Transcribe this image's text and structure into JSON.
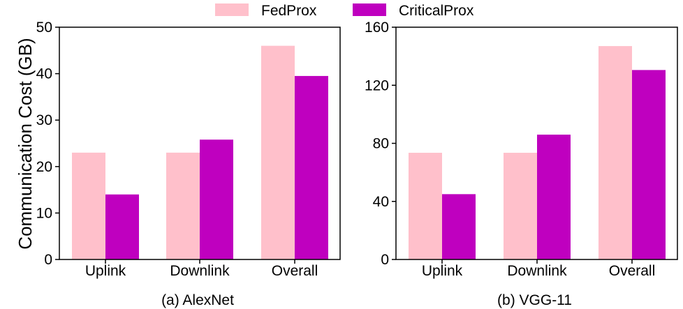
{
  "legend": {
    "items": [
      {
        "label": "FedProx",
        "color": "#ffc0cb"
      },
      {
        "label": "CriticalProx",
        "color": "#bf00bf"
      }
    ],
    "placement": "top-center"
  },
  "shared_ylabel": "Communication Cost (GB)",
  "chart_data": [
    {
      "type": "bar",
      "caption": "(a) AlexNet",
      "categories": [
        "Uplink",
        "Downlink",
        "Overall"
      ],
      "series": [
        {
          "name": "FedProx",
          "values": [
            23,
            23,
            46
          ],
          "color": "#ffc0cb"
        },
        {
          "name": "CriticalProx",
          "values": [
            14,
            25.8,
            39.5
          ],
          "color": "#bf00bf"
        }
      ],
      "ylabel": "Communication Cost (GB)",
      "ylim": [
        0,
        50
      ],
      "yticks": [
        "0",
        "10",
        "20",
        "30",
        "40",
        "50"
      ],
      "grid": false
    },
    {
      "type": "bar",
      "caption": "(b) VGG-11",
      "categories": [
        "Uplink",
        "Downlink",
        "Overall"
      ],
      "series": [
        {
          "name": "FedProx",
          "values": [
            73.5,
            73.5,
            147
          ],
          "color": "#ffc0cb"
        },
        {
          "name": "CriticalProx",
          "values": [
            45,
            86,
            130.5
          ],
          "color": "#bf00bf"
        }
      ],
      "ylabel": "",
      "ylim": [
        0,
        160
      ],
      "yticks": [
        "0",
        "40",
        "80",
        "120",
        "160"
      ],
      "grid": false
    }
  ]
}
